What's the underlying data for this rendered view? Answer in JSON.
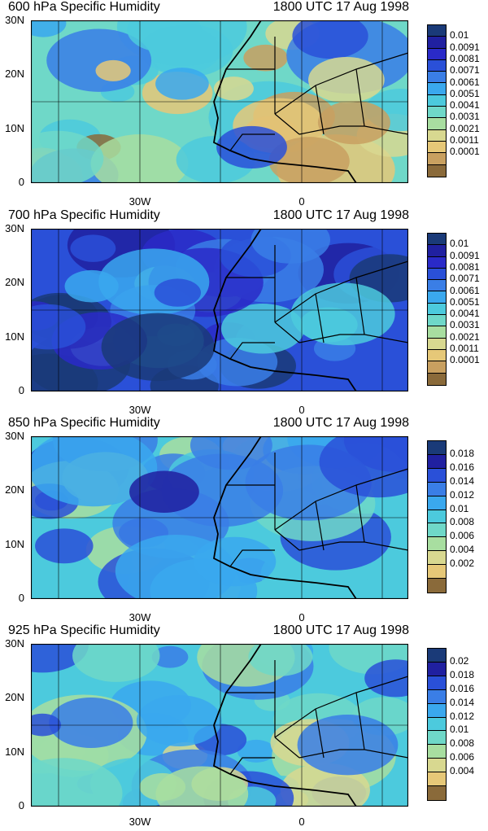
{
  "panels": [
    {
      "title": "600 hPa Specific Humidity",
      "time": "1800 UTC 17 Aug 1998",
      "lat_ticks": [
        "30N",
        "20N",
        "10N",
        "0"
      ],
      "lon_ticks": [
        "30W",
        "0"
      ],
      "colorbar_labels": [
        "0.01",
        "0.0091",
        "0.0081",
        "0.0071",
        "0.0061",
        "0.0051",
        "0.0041",
        "0.0031",
        "0.0021",
        "0.0011",
        "0.0001"
      ],
      "colorbar_colors": [
        "#1a3a78",
        "#2020a0",
        "#2a2ac8",
        "#2a50d8",
        "#3a7ee6",
        "#3aa8ee",
        "#4ccadd",
        "#6fd8c8",
        "#a8dea0",
        "#d8d890",
        "#e6c878",
        "#c8a060",
        "#8a6a3a"
      ],
      "fill_level": 0.62
    },
    {
      "title": "700 hPa Specific Humidity",
      "time": "1800 UTC 17 Aug 1998",
      "lat_ticks": [
        "30N",
        "20N",
        "10N",
        "0"
      ],
      "lon_ticks": [
        "30W",
        "0"
      ],
      "colorbar_labels": [
        "0.01",
        "0.0091",
        "0.0081",
        "0.0071",
        "0.0061",
        "0.0051",
        "0.0041",
        "0.0031",
        "0.0021",
        "0.0011",
        "0.0001"
      ],
      "colorbar_colors": [
        "#1a3a78",
        "#2020a0",
        "#2a2ac8",
        "#2a50d8",
        "#3a7ee6",
        "#3aa8ee",
        "#4ccadd",
        "#6fd8c8",
        "#a8dea0",
        "#d8d890",
        "#e6c878",
        "#c8a060",
        "#8a6a3a"
      ],
      "fill_level": 0.25
    },
    {
      "title": "850 hPa Specific Humidity",
      "time": "1800 UTC 17 Aug 1998",
      "lat_ticks": [
        "30N",
        "20N",
        "10N",
        "0"
      ],
      "lon_ticks": [
        "30W",
        "0"
      ],
      "colorbar_labels": [
        "0.018",
        "0.016",
        "0.014",
        "0.012",
        "0.01",
        "0.008",
        "0.006",
        "0.004",
        "0.002"
      ],
      "colorbar_colors": [
        "#1a3a78",
        "#2020a0",
        "#2a50d8",
        "#3a7ee6",
        "#3aa8ee",
        "#4ccadd",
        "#6fd8c8",
        "#a8dea0",
        "#d8d890",
        "#e6c878",
        "#8a6a3a"
      ],
      "fill_level": 0.45
    },
    {
      "title": "925 hPa Specific Humidity",
      "time": "1800 UTC 17 Aug 1998",
      "lat_ticks": [
        "30N",
        "20N",
        "10N",
        "0"
      ],
      "lon_ticks": [
        "30W",
        "0"
      ],
      "colorbar_labels": [
        "0.02",
        "0.018",
        "0.016",
        "0.014",
        "0.012",
        "0.01",
        "0.008",
        "0.006",
        "0.004"
      ],
      "colorbar_colors": [
        "#1a3a78",
        "#2020a0",
        "#2a50d8",
        "#3a7ee6",
        "#3aa8ee",
        "#4ccadd",
        "#6fd8c8",
        "#a8dea0",
        "#d8d890",
        "#e6c878",
        "#8a6a3a"
      ],
      "fill_level": 0.5
    }
  ]
}
